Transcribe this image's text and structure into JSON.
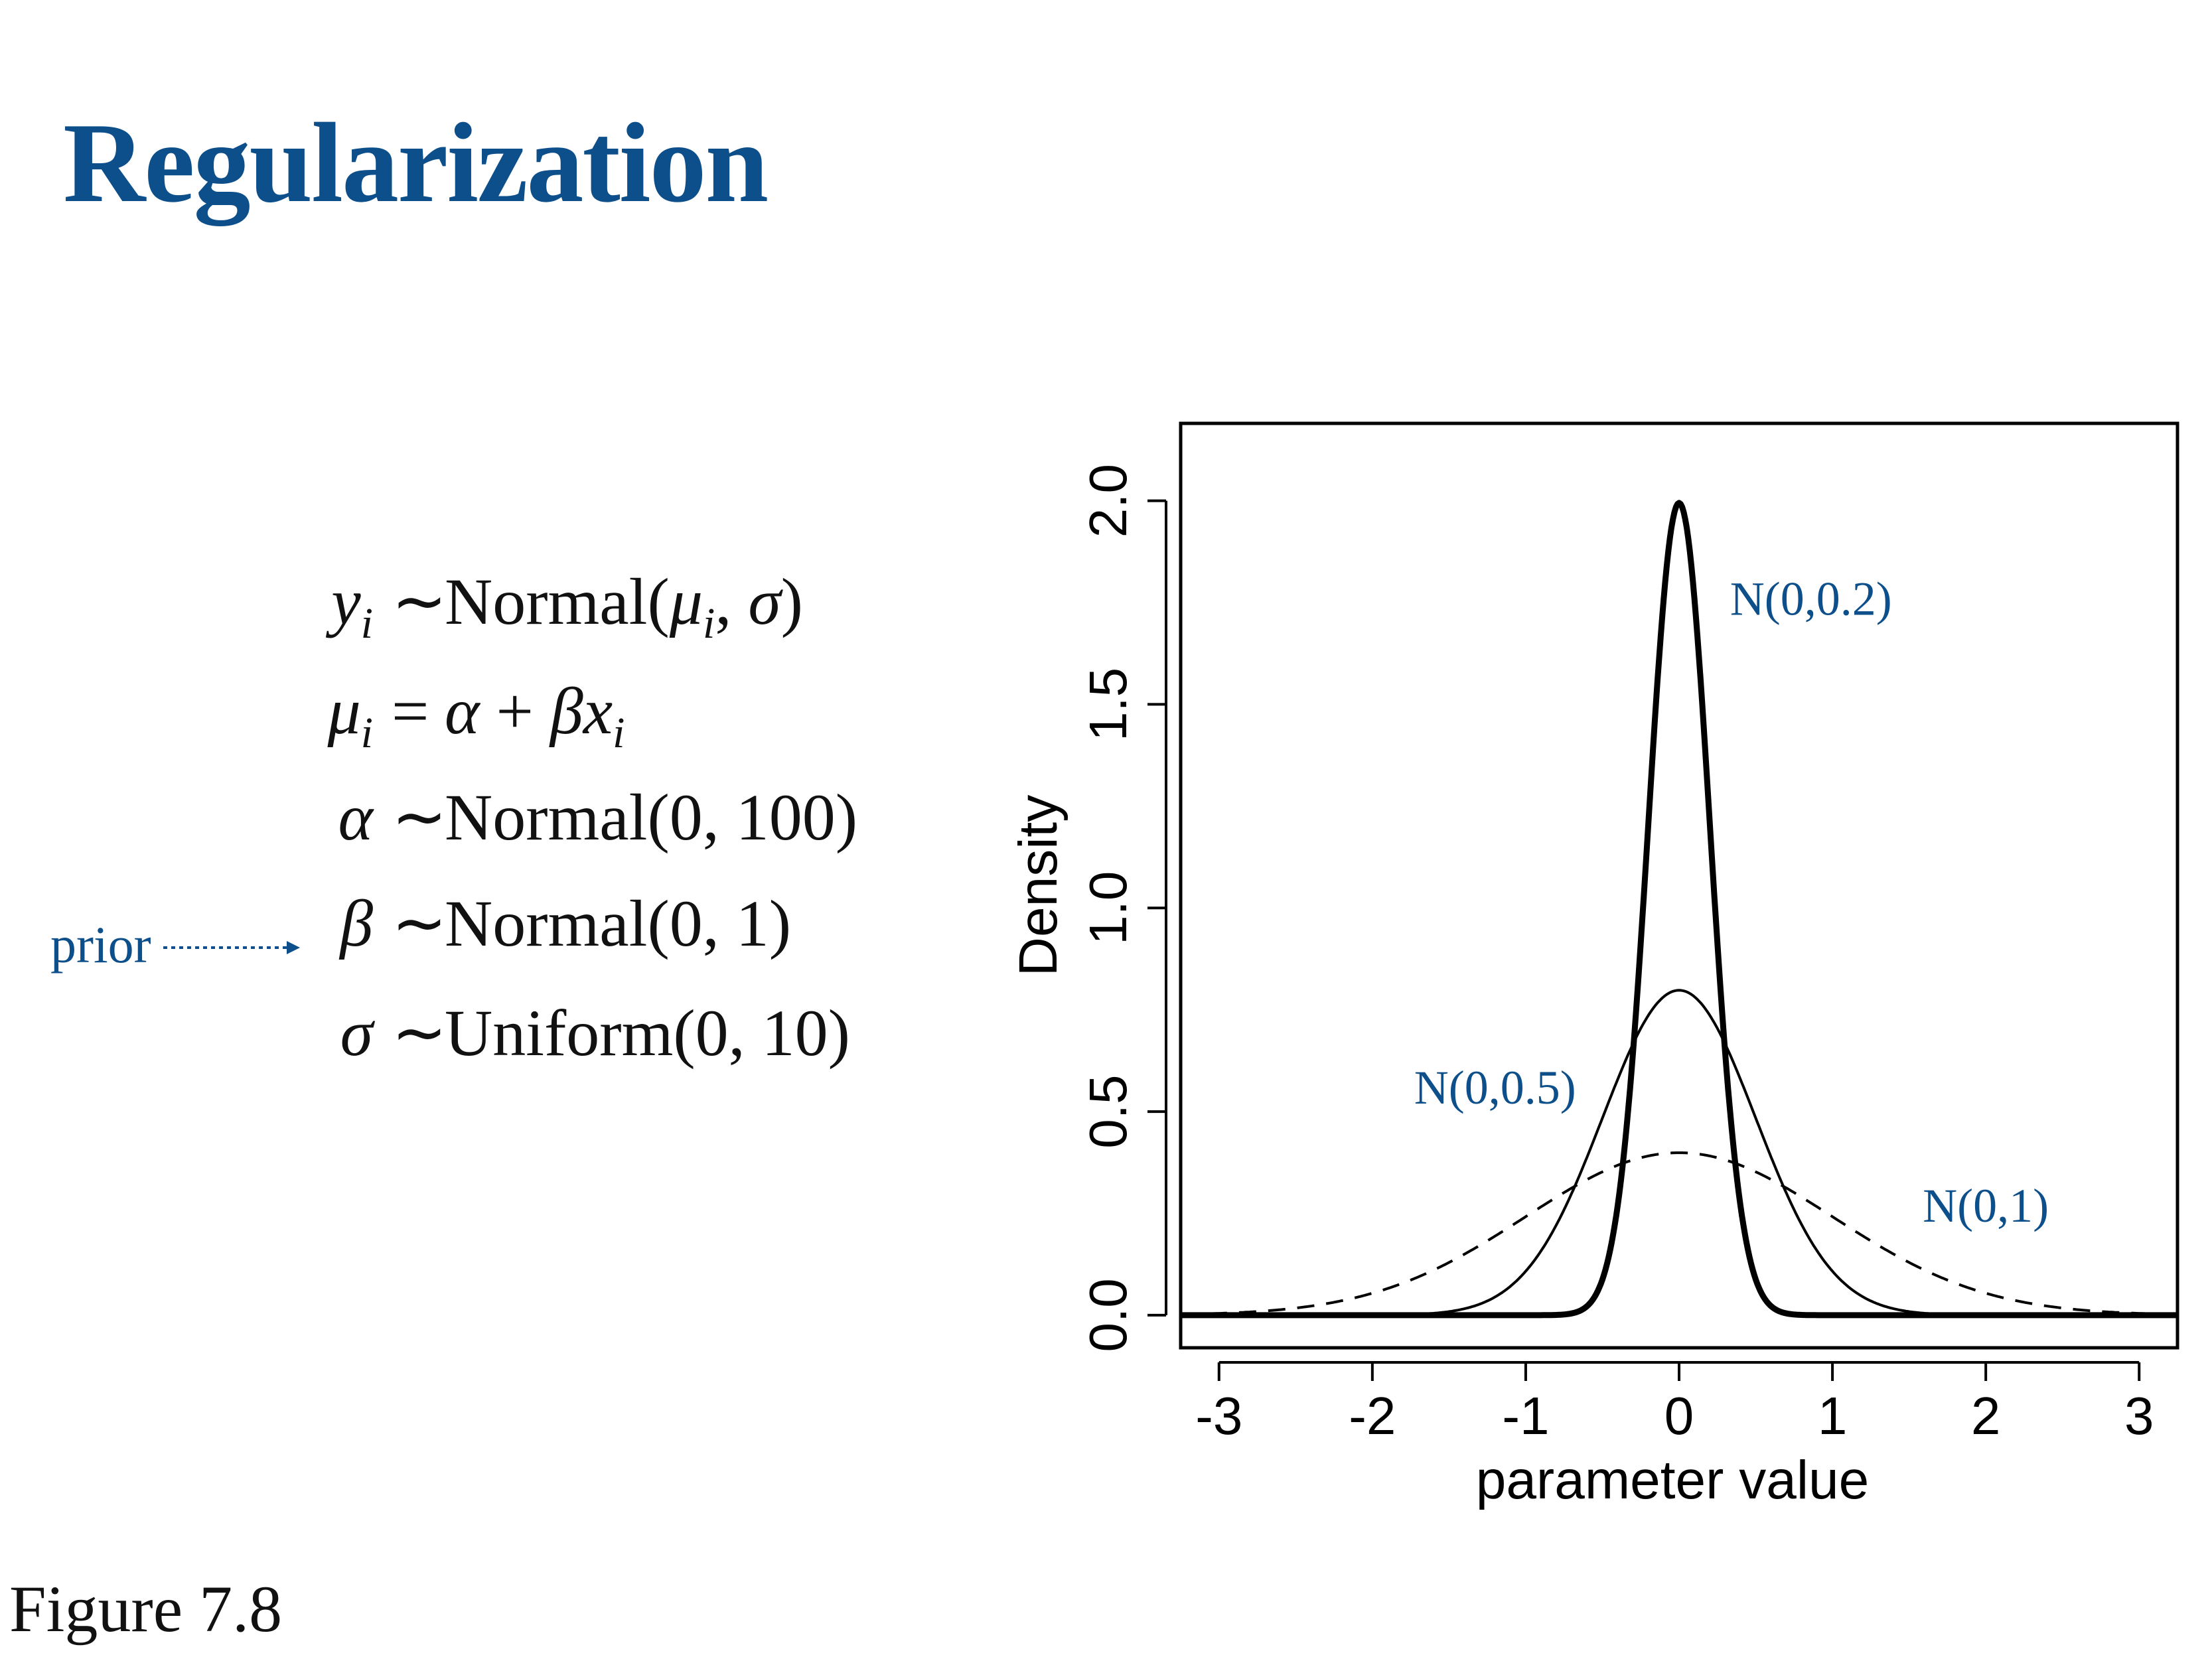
{
  "slide": {
    "title": "Regularization",
    "caption": "Figure 7.8",
    "prior_label": "prior"
  },
  "equations": [
    {
      "lhs": "y",
      "sub": "i",
      "rel": "∼",
      "rhs_pre": "Normal(",
      "rhs_italic": "μ",
      "rhs_sub": "i",
      "rhs_post": ", ",
      "rhs_italic2": "σ",
      "rhs_end": ")"
    },
    {
      "lhs": "μ",
      "sub": "i",
      "rel": "=",
      "rhs_pre": "",
      "rhs_italic": "α",
      "rhs_sub": "",
      "rhs_post": " + ",
      "rhs_italic2": "βx",
      "rhs_end": "",
      "rhs_sub2": "i"
    },
    {
      "lhs": "α",
      "sub": "",
      "rel": "∼",
      "rhs_pre": "Normal(0, 100)",
      "rhs_italic": "",
      "rhs_sub": "",
      "rhs_post": "",
      "rhs_italic2": "",
      "rhs_end": ""
    },
    {
      "lhs": "β",
      "sub": "",
      "rel": "∼",
      "rhs_pre": "Normal(0, 1)",
      "rhs_italic": "",
      "rhs_sub": "",
      "rhs_post": "",
      "rhs_italic2": "",
      "rhs_end": ""
    },
    {
      "lhs": "σ",
      "sub": "",
      "rel": "∼",
      "rhs_pre": "Uniform(0, 10)",
      "rhs_italic": "",
      "rhs_sub": "",
      "rhs_post": "",
      "rhs_italic2": "",
      "rhs_end": ""
    }
  ],
  "colors": {
    "accent": "#0d4f8a",
    "text": "#111111",
    "curve": "#000000"
  },
  "chart_data": {
    "type": "line",
    "xlabel": "parameter value",
    "ylabel": "Density",
    "xlim": [
      -3.25,
      3.25
    ],
    "ylim": [
      -0.08,
      2.19
    ],
    "xticks": [
      -3,
      -2,
      -1,
      0,
      1,
      2,
      3
    ],
    "xtick_labels": [
      "-3",
      "-2",
      "-1",
      "0",
      "1",
      "2",
      "3"
    ],
    "yticks": [
      0.0,
      0.5,
      1.0,
      1.5,
      2.0
    ],
    "ytick_labels": [
      "0.0",
      "0.5",
      "1.0",
      "1.5",
      "2.0"
    ],
    "grid": false,
    "legend": "none",
    "series": [
      {
        "name": "N(0,0.2)",
        "mean": 0,
        "sd": 0.2,
        "style": "solid-thick",
        "label_at": [
          0.86,
          1.72
        ],
        "x": [
          -3,
          -1,
          -0.6,
          -0.4,
          -0.2,
          0,
          0.2,
          0.4,
          0.6,
          1,
          3
        ],
        "y": [
          0.0,
          0.0,
          0.022,
          0.27,
          1.21,
          1.995,
          1.21,
          0.27,
          0.022,
          0.0,
          0.0
        ]
      },
      {
        "name": "N(0,0.5)",
        "mean": 0,
        "sd": 0.5,
        "style": "solid",
        "label_at": [
          -1.2,
          0.52
        ],
        "x": [
          -3,
          -2,
          -1,
          -0.5,
          0,
          0.5,
          1,
          2,
          3
        ],
        "y": [
          0.0,
          0.0003,
          0.108,
          0.484,
          0.798,
          0.484,
          0.108,
          0.0003,
          0.0
        ]
      },
      {
        "name": "N(0,1)",
        "mean": 0,
        "sd": 1,
        "style": "dashed",
        "label_at": [
          2.0,
          0.23
        ],
        "x": [
          -3,
          -2,
          -1,
          0,
          1,
          2,
          3
        ],
        "y": [
          0.0044,
          0.054,
          0.242,
          0.399,
          0.242,
          0.054,
          0.0044
        ]
      }
    ]
  }
}
